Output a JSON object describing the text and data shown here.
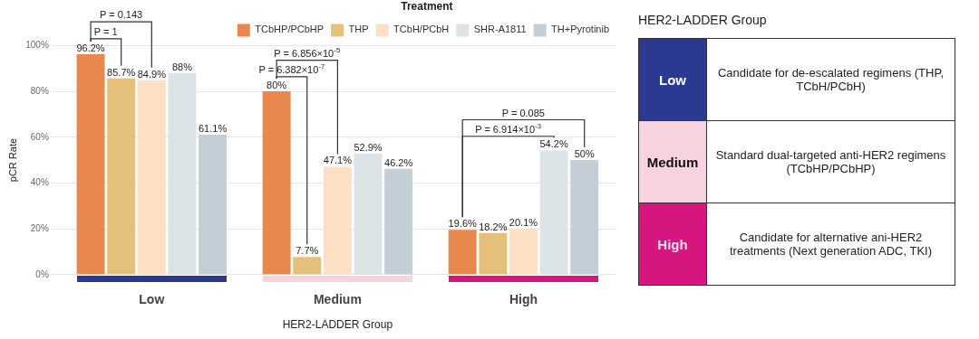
{
  "chart_data": [
    {
      "type": "bar",
      "xlabel": "HER2-LADDER Group",
      "ylabel": "pCR Rate",
      "legend_title": "Treatment",
      "legend": "top right",
      "grid": "y",
      "categories": [
        "Low",
        "Medium",
        "High"
      ],
      "ylim": [
        0,
        100
      ],
      "yticks": [
        {
          "value": 0,
          "label": "0%"
        },
        {
          "value": 20,
          "label": "20%"
        },
        {
          "value": 40,
          "label": "40%"
        },
        {
          "value": 60,
          "label": "60%"
        },
        {
          "value": 80,
          "label": "80%"
        },
        {
          "value": 100,
          "label": "100%"
        }
      ],
      "series": [
        {
          "name": "TCbHP/PCbHP",
          "color": "#e8884e",
          "values": [
            96.2,
            80,
            19.6
          ],
          "value_labels": [
            "96.2%",
            "80%",
            "19.6%"
          ]
        },
        {
          "name": "THP",
          "color": "#e5c07a",
          "values": [
            85.7,
            7.7,
            18.2
          ],
          "value_labels": [
            "85.7%",
            "7.7%",
            "18.2%"
          ]
        },
        {
          "name": "TCbH/PCbH",
          "color": "#fbe0c4",
          "values": [
            84.9,
            47.1,
            20.1
          ],
          "value_labels": [
            "84.9%",
            "47.1%",
            "20.1%"
          ]
        },
        {
          "name": "SHR-A1811",
          "color": "#dce4e8",
          "values": [
            88,
            52.9,
            54.2
          ],
          "value_labels": [
            "88%",
            "52.9%",
            "54.2%"
          ]
        },
        {
          "name": "TH+Pyrotinib",
          "color": "#c3ced6",
          "values": [
            61.1,
            46.2,
            50
          ],
          "value_labels": [
            "61.1%",
            "46.2%",
            "50%"
          ]
        }
      ],
      "annotations": [
        "P = 1",
        "P = 0.143",
        "P = 6.382×10$^{-7}$",
        "P = 6.856×10$^{-5}$",
        "P = 6.914×10$^{-3}$",
        "P = 0.085"
      ]
    },
    {
      "type": "other",
      "title": "HER2-LADDER Group",
      "annotations": [
        "Low",
        "Candidate for de-escalated regimens (THP, TCbH/PCbH)",
        "Medium",
        "Standard dual-targeted anti-HER2 regimens (TCbHP/PCbHP)",
        "High",
        "Candidate for alternative ani-HER2 treatments (Next generation ADC, TKI)"
      ]
    }
  ]
}
